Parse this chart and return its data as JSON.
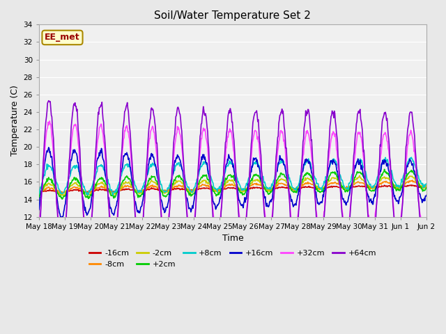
{
  "title": "Soil/Water Temperature Set 2",
  "xlabel": "Time",
  "ylabel": "Temperature (C)",
  "ylim": [
    12,
    34
  ],
  "yticks": [
    12,
    14,
    16,
    18,
    20,
    22,
    24,
    26,
    28,
    30,
    32,
    34
  ],
  "fig_bg": "#e8e8e8",
  "plot_bg": "#f0f0f0",
  "annotation_text": "EE_met",
  "annotation_bg": "#ffffcc",
  "annotation_border": "#aa8800",
  "series": [
    {
      "label": "-16cm",
      "color": "#cc0000"
    },
    {
      "label": "-8cm",
      "color": "#ff8800"
    },
    {
      "label": "-2cm",
      "color": "#cccc00"
    },
    {
      "label": "+2cm",
      "color": "#00cc00"
    },
    {
      "label": "+8cm",
      "color": "#00cccc"
    },
    {
      "label": "+16cm",
      "color": "#0000cc"
    },
    {
      "label": "+32cm",
      "color": "#ff44ff"
    },
    {
      "label": "+64cm",
      "color": "#8800cc"
    }
  ],
  "xtick_labels": [
    "May 18",
    "May 19",
    "May 20",
    "May 21",
    "May 22",
    "May 23",
    "May 24",
    "May 25",
    "May 26",
    "May 27",
    "May 28",
    "May 29",
    "May 30",
    "May 31",
    "Jun 1",
    "Jun 2"
  ],
  "n_days": 15
}
